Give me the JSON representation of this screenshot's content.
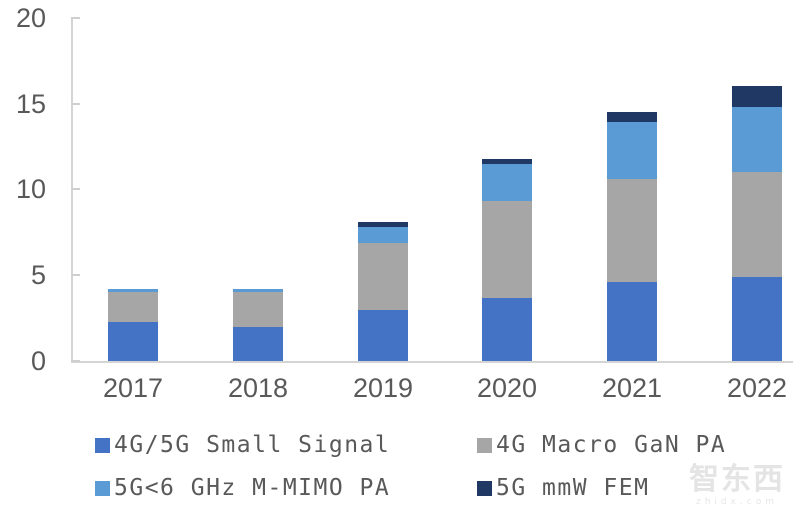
{
  "chart_data": {
    "type": "bar",
    "stacked": true,
    "title": "",
    "xlabel": "",
    "ylabel": "",
    "categories": [
      "2017",
      "2018",
      "2019",
      "2020",
      "2021",
      "2022"
    ],
    "series": [
      {
        "name": "4G/5G Small Signal",
        "color": "#4472C4",
        "values": [
          2.3,
          2.0,
          3.0,
          3.7,
          4.6,
          4.9
        ]
      },
      {
        "name": "4G Macro GaN PA",
        "color": "#A6A6A6",
        "values": [
          1.7,
          2.0,
          3.9,
          5.6,
          6.0,
          6.1
        ]
      },
      {
        "name": "5G<6 GHz M-MIMO PA",
        "color": "#5B9BD5",
        "values": [
          0.2,
          0.2,
          0.9,
          2.2,
          3.3,
          3.8
        ]
      },
      {
        "name": "5G mmW FEM",
        "color": "#1F3864",
        "values": [
          0.0,
          0.0,
          0.3,
          0.3,
          0.6,
          1.2
        ]
      }
    ],
    "ylim": [
      0,
      20
    ],
    "yticks": [
      0,
      5,
      10,
      15,
      20
    ],
    "grid": false,
    "legend_position": "bottom"
  },
  "colors": {
    "axis_line": "#d4d4d4",
    "tick_label": "#595959",
    "legend_text": "#595959"
  },
  "watermark": {
    "logo_text": "智东西",
    "sub_text": "zhidx.com"
  }
}
